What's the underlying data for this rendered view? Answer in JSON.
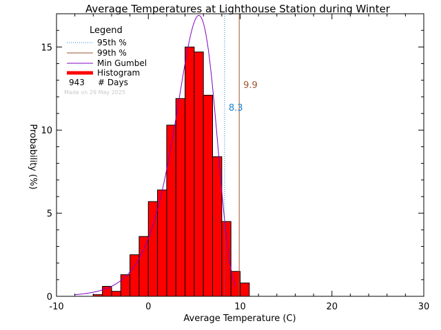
{
  "chart_data": {
    "type": "bar",
    "title": "Average Temperatures at Lighthouse Station during Winter",
    "xlabel": "Average Temperature (C)",
    "ylabel": "Probability  (%)",
    "xlim": [
      -10,
      30
    ],
    "ylim": [
      0,
      17
    ],
    "xticks": [
      -10,
      0,
      10,
      20,
      30
    ],
    "yticks": [
      0,
      5,
      10,
      15
    ],
    "grid": false,
    "legend_position": "top-left",
    "legend": {
      "title": "Legend",
      "entries": [
        {
          "label": "95th %",
          "style": "dotted",
          "color": "#1a7fd4"
        },
        {
          "label": "99th %",
          "style": "solid",
          "color": "#a0522d"
        },
        {
          "label": "Min Gumbel",
          "style": "solid",
          "color": "#8000c0"
        },
        {
          "label": "Histogram",
          "style": "thick",
          "color": "#ff0000"
        }
      ],
      "days_count": "943",
      "days_label": "# Days",
      "made_on": "Made on 29 May 2025"
    },
    "histogram": {
      "bin_width": 1,
      "bin_starts": [
        -6,
        -5,
        -4,
        -3,
        -2,
        -1,
        0,
        1,
        2,
        3,
        4,
        5,
        6,
        7,
        8,
        9,
        10
      ],
      "values": [
        0.1,
        0.6,
        0.3,
        1.3,
        2.5,
        3.6,
        5.7,
        6.4,
        10.3,
        11.9,
        15.0,
        14.7,
        12.1,
        8.4,
        4.5,
        1.5,
        0.8
      ],
      "color": "#ff0000"
    },
    "gumbel": {
      "name": "Min Gumbel",
      "x_start": -8,
      "x_end": 9.5,
      "mode": 5.5,
      "scale": 2.2,
      "peak": 16.9,
      "color": "#8000c0"
    },
    "percentile_95": {
      "value": 8.3,
      "label": "8.3",
      "color": "#1a7fd4"
    },
    "percentile_99": {
      "value": 9.9,
      "label": "9.9",
      "color": "#a0522d"
    }
  }
}
